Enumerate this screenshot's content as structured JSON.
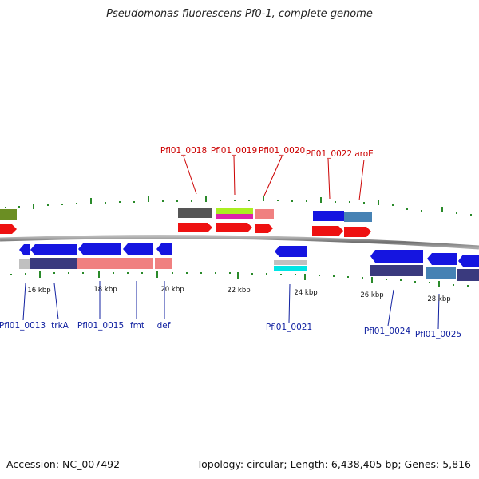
{
  "title": "Pseudomonas fluorescens Pf0-1, complete genome",
  "footer": {
    "accession": "Accession: NC_007492",
    "topology": "Topology: circular; Length: 6,438,405 bp; Genes: 5,816"
  },
  "colors": {
    "backbone": "#888888",
    "tick": "#2a8a2a",
    "cds": "#ee1111",
    "gene_blue": "#1515e0",
    "label_red": "#cc0000",
    "label_blue": "#1020a0"
  },
  "scale_labels": [
    "16 kbp",
    "18 kbp",
    "20 kbp",
    "22 kbp",
    "24 kbp",
    "26 kbp",
    "28 kbp"
  ],
  "top_labels": [
    "Pfl01_0018",
    "Pfl01_0019",
    "Pfl01_0020",
    "Pfl01_0022",
    "aroE"
  ],
  "bottom_labels": [
    "Pfl01_0013",
    "trkA",
    "Pfl01_0015",
    "fmt",
    "def",
    "Pfl01_0021",
    "Pfl01_0024",
    "Pfl01_0025"
  ]
}
